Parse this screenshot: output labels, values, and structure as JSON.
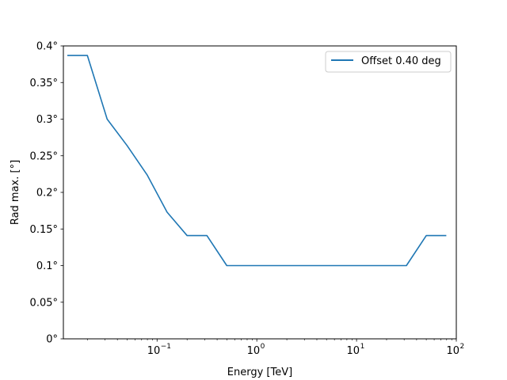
{
  "chart_data": {
    "type": "line",
    "title": "",
    "xlabel": "Energy [TeV]",
    "ylabel": "Rad max. [°]",
    "xscale": "log",
    "xlim": [
      0.0115,
      100
    ],
    "ylim": [
      0,
      0.4
    ],
    "x_ticks": [
      {
        "value": 0.1,
        "base": "10",
        "exp": "−1"
      },
      {
        "value": 1,
        "base": "10",
        "exp": "0"
      },
      {
        "value": 10,
        "base": "10",
        "exp": "1"
      },
      {
        "value": 100,
        "base": "10",
        "exp": "2"
      }
    ],
    "y_ticks": [
      {
        "value": 0,
        "label": "0°"
      },
      {
        "value": 0.05,
        "label": "0.05°"
      },
      {
        "value": 0.1,
        "label": "0.1°"
      },
      {
        "value": 0.15,
        "label": "0.15°"
      },
      {
        "value": 0.2,
        "label": "0.2°"
      },
      {
        "value": 0.25,
        "label": "0.25°"
      },
      {
        "value": 0.3,
        "label": "0.3°"
      },
      {
        "value": 0.35,
        "label": "0.35°"
      },
      {
        "value": 0.4,
        "label": "0.4°"
      }
    ],
    "grid": false,
    "legend_position": "top-right",
    "series": [
      {
        "name": "Offset 0.40 deg",
        "color": "#1f77b4",
        "x": [
          0.0126,
          0.02,
          0.0316,
          0.05,
          0.0794,
          0.126,
          0.2,
          0.316,
          0.5,
          1,
          3,
          10,
          31.6,
          50,
          79.4
        ],
        "y": [
          0.387,
          0.387,
          0.3,
          0.264,
          0.224,
          0.173,
          0.141,
          0.141,
          0.1,
          0.1,
          0.1,
          0.1,
          0.1,
          0.141,
          0.141
        ]
      }
    ]
  }
}
